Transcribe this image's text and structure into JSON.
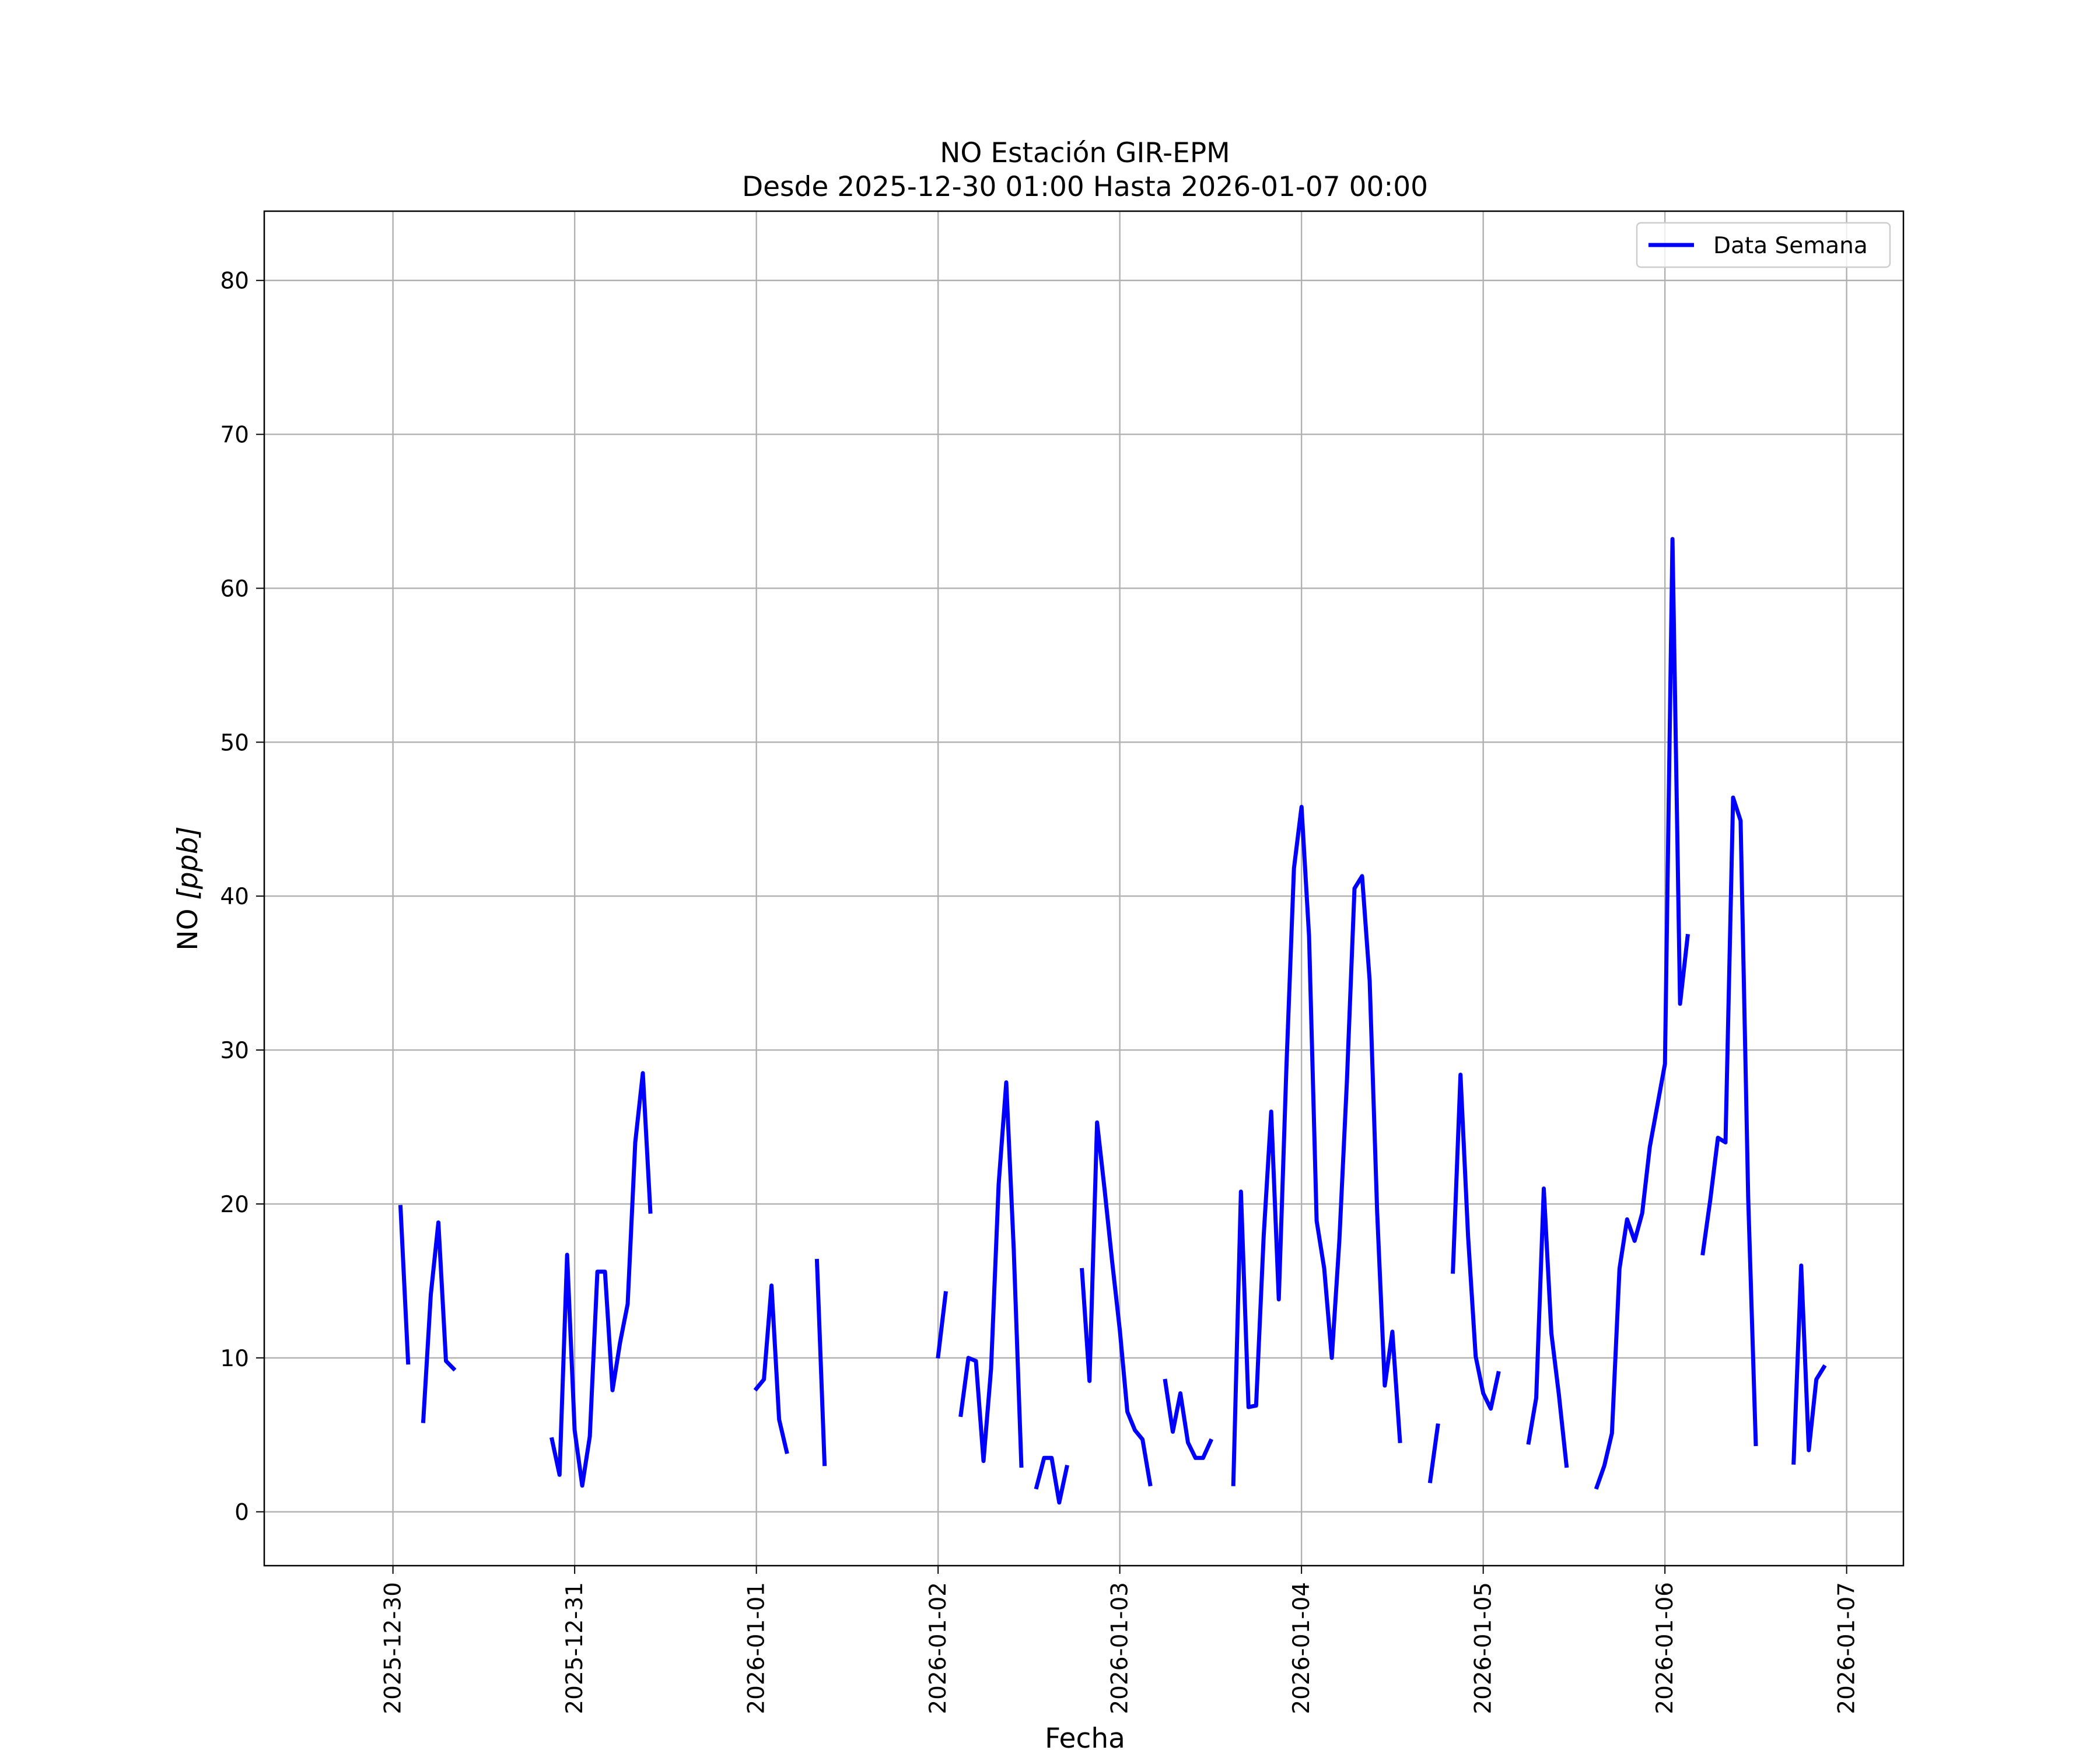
{
  "chart_data": {
    "type": "line",
    "title": "NO Estación GIR-EPM",
    "subtitle": "Desde 2025-12-30 01:00 Hasta 2026-01-07 00:00",
    "xlabel": "Fecha",
    "ylabel_main": "NO ",
    "ylabel_unit": "[ppb]",
    "xlim": [
      "2025-12-29T07:00",
      "2026-01-07T07:30"
    ],
    "ylim": [
      -3.5,
      84.5
    ],
    "grid": true,
    "legend_position": "top-right",
    "x_tick_labels": [
      "2025-12-30",
      "2025-12-31",
      "2026-01-01",
      "2026-01-02",
      "2026-01-03",
      "2026-01-04",
      "2026-01-05",
      "2026-01-06",
      "2026-01-07"
    ],
    "y_ticks": [
      0,
      10,
      20,
      30,
      40,
      50,
      60,
      70,
      80
    ],
    "series": [
      {
        "name": "Data Semana",
        "color": "#0000ff",
        "segments": [
          [
            [
              "2025-12-30T01:00",
              19.8
            ],
            [
              "2025-12-30T02:00",
              9.7
            ]
          ],
          [
            [
              "2025-12-30T04:00",
              5.9
            ],
            [
              "2025-12-30T05:00",
              14.1
            ],
            [
              "2025-12-30T06:00",
              18.8
            ],
            [
              "2025-12-30T07:00",
              9.8
            ],
            [
              "2025-12-30T08:00",
              9.3
            ]
          ],
          [
            [
              "2025-12-30T21:00",
              4.7
            ],
            [
              "2025-12-30T22:00",
              2.4
            ],
            [
              "2025-12-30T23:00",
              16.7
            ],
            [
              "2025-12-31T00:00",
              5.3
            ],
            [
              "2025-12-31T01:00",
              1.7
            ],
            [
              "2025-12-31T02:00",
              4.9
            ],
            [
              "2025-12-31T03:00",
              15.6
            ],
            [
              "2025-12-31T04:00",
              15.6
            ],
            [
              "2025-12-31T05:00",
              7.9
            ],
            [
              "2025-12-31T06:00",
              11.0
            ],
            [
              "2025-12-31T07:00",
              13.5
            ],
            [
              "2025-12-31T08:00",
              24.0
            ],
            [
              "2025-12-31T09:00",
              28.5
            ],
            [
              "2025-12-31T10:00",
              19.5
            ]
          ],
          [
            [
              "2026-01-01T00:00",
              8.0
            ],
            [
              "2026-01-01T01:00",
              8.6
            ],
            [
              "2026-01-01T02:00",
              14.7
            ],
            [
              "2026-01-01T03:00",
              6.0
            ],
            [
              "2026-01-01T04:00",
              3.9
            ]
          ],
          [
            [
              "2026-01-01T08:00",
              16.3
            ],
            [
              "2026-01-01T09:00",
              3.1
            ]
          ],
          [
            [
              "2026-01-02T00:00",
              10.1
            ],
            [
              "2026-01-02T01:00",
              14.2
            ]
          ],
          [
            [
              "2026-01-02T03:00",
              6.3
            ],
            [
              "2026-01-02T04:00",
              10.0
            ],
            [
              "2026-01-02T05:00",
              9.8
            ],
            [
              "2026-01-02T06:00",
              3.3
            ],
            [
              "2026-01-02T07:00",
              9.3
            ],
            [
              "2026-01-02T08:00",
              21.3
            ],
            [
              "2026-01-02T09:00",
              27.9
            ],
            [
              "2026-01-02T10:00",
              17.0
            ],
            [
              "2026-01-02T11:00",
              3.0
            ]
          ],
          [
            [
              "2026-01-02T13:00",
              1.6
            ],
            [
              "2026-01-02T14:00",
              3.5
            ],
            [
              "2026-01-02T15:00",
              3.5
            ],
            [
              "2026-01-02T16:00",
              0.6
            ],
            [
              "2026-01-02T17:00",
              2.9
            ]
          ],
          [
            [
              "2026-01-02T19:00",
              15.7
            ],
            [
              "2026-01-02T20:00",
              8.5
            ],
            [
              "2026-01-02T21:00",
              25.3
            ],
            [
              "2026-01-02T22:00",
              20.9
            ],
            [
              "2026-01-02T23:00",
              16.2
            ],
            [
              "2026-01-03T00:00",
              11.8
            ],
            [
              "2026-01-03T01:00",
              6.5
            ],
            [
              "2026-01-03T02:00",
              5.3
            ],
            [
              "2026-01-03T03:00",
              4.7
            ],
            [
              "2026-01-03T04:00",
              1.8
            ]
          ],
          [
            [
              "2026-01-03T06:00",
              8.5
            ],
            [
              "2026-01-03T07:00",
              5.2
            ],
            [
              "2026-01-03T08:00",
              7.7
            ],
            [
              "2026-01-03T09:00",
              4.5
            ],
            [
              "2026-01-03T10:00",
              3.5
            ],
            [
              "2026-01-03T11:00",
              3.5
            ],
            [
              "2026-01-03T12:00",
              4.6
            ]
          ],
          [
            [
              "2026-01-03T15:00",
              1.8
            ],
            [
              "2026-01-03T16:00",
              20.8
            ],
            [
              "2026-01-03T17:00",
              6.8
            ],
            [
              "2026-01-03T18:00",
              6.9
            ],
            [
              "2026-01-03T19:00",
              17.9
            ],
            [
              "2026-01-03T20:00",
              26.0
            ],
            [
              "2026-01-03T21:00",
              13.8
            ],
            [
              "2026-01-03T22:00",
              28.8
            ],
            [
              "2026-01-03T23:00",
              41.8
            ],
            [
              "2026-01-04T00:00",
              45.8
            ],
            [
              "2026-01-04T01:00",
              37.4
            ],
            [
              "2026-01-04T02:00",
              18.9
            ],
            [
              "2026-01-04T03:00",
              15.8
            ],
            [
              "2026-01-04T04:00",
              10.0
            ],
            [
              "2026-01-04T05:00",
              17.6
            ],
            [
              "2026-01-04T06:00",
              28.0
            ],
            [
              "2026-01-04T07:00",
              40.5
            ],
            [
              "2026-01-04T08:00",
              41.3
            ],
            [
              "2026-01-04T09:00",
              34.5
            ],
            [
              "2026-01-04T10:00",
              19.4
            ],
            [
              "2026-01-04T11:00",
              8.2
            ],
            [
              "2026-01-04T12:00",
              11.7
            ],
            [
              "2026-01-04T13:00",
              4.6
            ]
          ],
          [
            [
              "2026-01-04T17:00",
              2.0
            ],
            [
              "2026-01-04T18:00",
              5.6
            ]
          ],
          [
            [
              "2026-01-04T20:00",
              15.6
            ],
            [
              "2026-01-04T21:00",
              28.4
            ],
            [
              "2026-01-04T22:00",
              17.9
            ],
            [
              "2026-01-04T23:00",
              10.1
            ],
            [
              "2026-01-05T00:00",
              7.7
            ],
            [
              "2026-01-05T01:00",
              6.7
            ],
            [
              "2026-01-05T02:00",
              9.0
            ]
          ],
          [
            [
              "2026-01-05T06:00",
              4.5
            ],
            [
              "2026-01-05T07:00",
              7.4
            ],
            [
              "2026-01-05T08:00",
              21.0
            ],
            [
              "2026-01-05T09:00",
              11.6
            ],
            [
              "2026-01-05T10:00",
              7.6
            ],
            [
              "2026-01-05T11:00",
              3.0
            ]
          ],
          [
            [
              "2026-01-05T15:00",
              1.6
            ],
            [
              "2026-01-05T16:00",
              3.0
            ],
            [
              "2026-01-05T17:00",
              5.1
            ],
            [
              "2026-01-05T18:00",
              15.8
            ],
            [
              "2026-01-05T19:00",
              19.0
            ],
            [
              "2026-01-05T20:00",
              17.6
            ],
            [
              "2026-01-05T21:00",
              19.4
            ],
            [
              "2026-01-05T22:00",
              23.7
            ],
            [
              "2026-01-05T23:00",
              26.4
            ],
            [
              "2026-01-06T00:00",
              29.1
            ],
            [
              "2026-01-06T01:00",
              63.2
            ],
            [
              "2026-01-06T02:00",
              33.0
            ],
            [
              "2026-01-06T03:00",
              37.4
            ]
          ],
          [
            [
              "2026-01-06T05:00",
              16.8
            ],
            [
              "2026-01-06T06:00",
              20.3
            ],
            [
              "2026-01-06T07:00",
              24.3
            ],
            [
              "2026-01-06T08:00",
              24.0
            ],
            [
              "2026-01-06T09:00",
              46.4
            ],
            [
              "2026-01-06T10:00",
              44.9
            ],
            [
              "2026-01-06T11:00",
              20.4
            ],
            [
              "2026-01-06T12:00",
              4.4
            ]
          ],
          [
            [
              "2026-01-06T17:00",
              3.2
            ],
            [
              "2026-01-06T18:00",
              16.0
            ],
            [
              "2026-01-06T19:00",
              4.0
            ],
            [
              "2026-01-06T20:00",
              8.6
            ],
            [
              "2026-01-06T21:00",
              9.4
            ]
          ]
        ]
      }
    ]
  }
}
